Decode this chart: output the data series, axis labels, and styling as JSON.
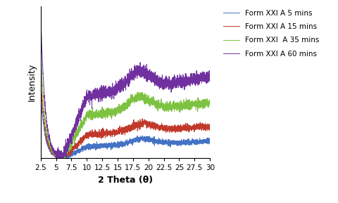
{
  "xlabel": "2 Theta (θ)",
  "ylabel": "Intensity",
  "xlim": [
    2.5,
    30
  ],
  "xticks": [
    2.5,
    5,
    7.5,
    10,
    12.5,
    15,
    17.5,
    20,
    22.5,
    25,
    27.5,
    30
  ],
  "xtick_labels": [
    "2.5",
    "5",
    "7.5",
    "10",
    "12.5",
    "15",
    "17.5",
    "20",
    "22.5",
    "25",
    "27.5",
    "30"
  ],
  "series": [
    {
      "label": "Form XXI A 5 mins",
      "color": "#4472C4"
    },
    {
      "label": "Form XXI A 15 mins",
      "color": "#C0392B"
    },
    {
      "label": "Form XXI  A 35 mins",
      "color": "#7DC241"
    },
    {
      "label": "Form XXI A 60 mins",
      "color": "#7030A0"
    }
  ],
  "background_color": "#ffffff",
  "legend_fontsize": 7.5,
  "axis_fontsize": 9,
  "tick_fontsize": 7.5
}
